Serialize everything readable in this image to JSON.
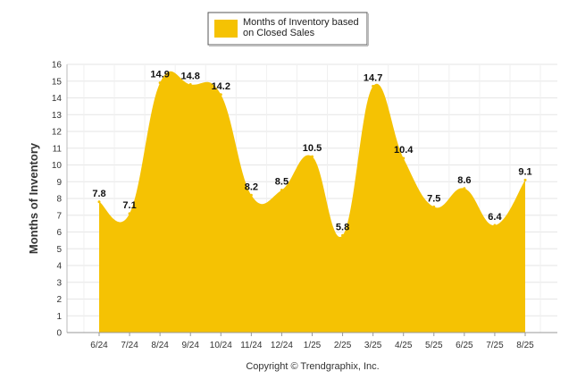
{
  "chart_data": {
    "type": "area",
    "categories": [
      "6/24",
      "7/24",
      "8/24",
      "9/24",
      "10/24",
      "11/24",
      "12/24",
      "1/25",
      "2/25",
      "3/25",
      "4/25",
      "5/25",
      "6/25",
      "7/25",
      "8/25"
    ],
    "series": [
      {
        "name": "Months of Inventory based on Closed Sales",
        "values": [
          7.8,
          7.1,
          14.9,
          14.8,
          14.2,
          8.2,
          8.5,
          10.5,
          5.8,
          14.7,
          10.4,
          7.5,
          8.6,
          6.4,
          9.1
        ],
        "color": "#f5c203"
      }
    ],
    "data_labels": [
      "7.8",
      "7.1",
      "14.9",
      "14.8",
      "14.2",
      "8.2",
      "8.5",
      "10.5",
      "5.8",
      "14.7",
      "10.4",
      "7.5",
      "8.6",
      "6.4",
      "9.1"
    ],
    "ylabel": "Months of Inventory",
    "xlabel": "",
    "ylim": [
      0,
      16
    ],
    "yticks": [
      "0",
      "1",
      "2",
      "3",
      "4",
      "5",
      "6",
      "7",
      "8",
      "9",
      "10",
      "11",
      "12",
      "13",
      "14",
      "15",
      "16"
    ],
    "grid": true,
    "legend": {
      "position": "top-center",
      "line1": "Months of Inventory based",
      "line2": "on Closed Sales"
    },
    "footer": "Copyright © Trendgraphix, Inc."
  }
}
